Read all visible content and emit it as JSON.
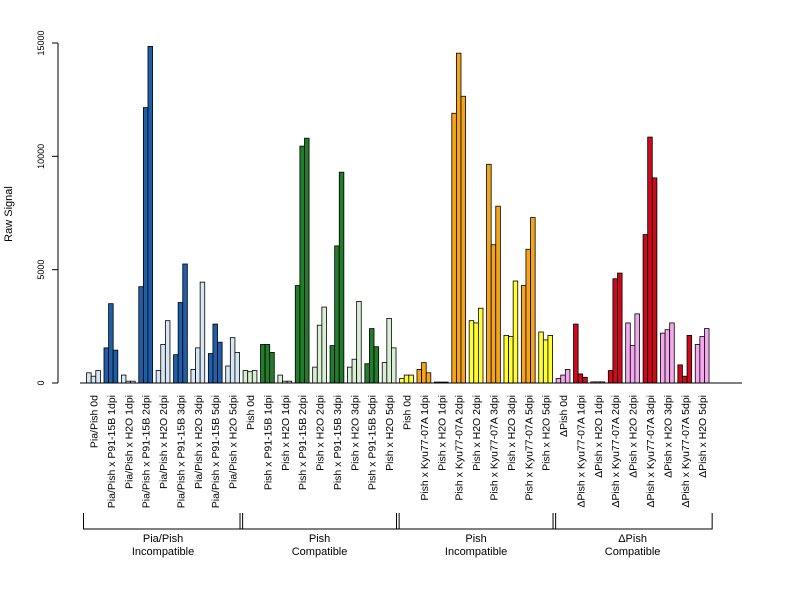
{
  "chart_data": {
    "type": "bar",
    "title": "",
    "xlabel": "",
    "ylabel": "Raw Signal",
    "ylim": [
      0,
      15000
    ],
    "yticks": [
      0,
      5000,
      10000,
      15000
    ],
    "grid": false,
    "replicates": 3,
    "categories": [
      "Pia/Pish 0d",
      "Pia/Pish x P91-15B 1dpi",
      "Pia/Pish x H2O 1dpi",
      "Pia/Pish x P91-15B 2dpi",
      "Pia/Pish x H2O 2dpi",
      "Pia/Pish x P91-15B 3dpi",
      "Pia/Pish x H2O 3dpi",
      "Pia/Pish x P91-15B 5dpi",
      "Pia/Pish x H2O 5dpi",
      "Pish 0d",
      "Pish x P91-15B 1dpi",
      "Pish x H2O 1dpi",
      "Pish x P91-15B 2dpi",
      "Pish x H2O 2dpi",
      "Pish x P91-15B 3dpi",
      "Pish x H2O 3dpi",
      "Pish x P91-15B 5dpi",
      "Pish x H2O 5dpi",
      "Pish 0d",
      "Pish x Kyu77-07A 1dpi",
      "Pish x H2O 1dpi",
      "Pish x Kyu77-07A 2dpi",
      "Pish x H2O 2dpi",
      "Pish x Kyu77-07A 3dpi",
      "Pish x H2O 3dpi",
      "Pish x Kyu77-07A 5dpi",
      "Pish x H2O 5dpi",
      "ΔPish 0d",
      "ΔPish x Kyu77-07A 1dpi",
      "ΔPish x H2O 1dpi",
      "ΔPish x Kyu77-07A 2dpi",
      "ΔPish x H2O 2dpi",
      "ΔPish x Kyu77-07A 3dpi",
      "ΔPish x H2O 3dpi",
      "ΔPish x Kyu77-07A 5dpi",
      "ΔPish x H2O 5dpi"
    ],
    "values": [
      [
        450,
        300,
        550
      ],
      [
        1550,
        3500,
        1450
      ],
      [
        350,
        80,
        80
      ],
      [
        4250,
        12150,
        14850
      ],
      [
        550,
        1700,
        2750
      ],
      [
        1250,
        3550,
        5250
      ],
      [
        600,
        1550,
        4450
      ],
      [
        1300,
        2600,
        1800
      ],
      [
        750,
        2000,
        1350
      ],
      [
        550,
        500,
        550
      ],
      [
        1700,
        1700,
        1350
      ],
      [
        350,
        80,
        80
      ],
      [
        4300,
        10450,
        10800
      ],
      [
        700,
        2550,
        3350
      ],
      [
        1650,
        6050,
        9300
      ],
      [
        700,
        1050,
        3600
      ],
      [
        850,
        2400,
        1600
      ],
      [
        900,
        2850,
        1550
      ],
      [
        200,
        350,
        350
      ],
      [
        600,
        900,
        450
      ],
      [
        40,
        40,
        40
      ],
      [
        11900,
        14550,
        12650
      ],
      [
        2750,
        2650,
        3300
      ],
      [
        9650,
        6100,
        7800
      ],
      [
        2100,
        2050,
        4500
      ],
      [
        4300,
        5900,
        7300
      ],
      [
        2250,
        1900,
        2100
      ],
      [
        200,
        350,
        600
      ],
      [
        2600,
        400,
        250
      ],
      [
        50,
        50,
        50
      ],
      [
        550,
        4600,
        4850
      ],
      [
        2650,
        1650,
        3050
      ],
      [
        6550,
        10850,
        9050
      ],
      [
        2200,
        2350,
        2650
      ],
      [
        800,
        300,
        2100
      ],
      [
        1700,
        2050,
        2400
      ]
    ],
    "colors": [
      "#d6e6f4",
      "#1f5ea8",
      "#d6e6f4",
      "#1f5ea8",
      "#d6e6f4",
      "#1f5ea8",
      "#d6e6f4",
      "#1f5ea8",
      "#d6e6f4",
      "#d9efd3",
      "#217c2b",
      "#d9efd3",
      "#217c2b",
      "#d9efd3",
      "#217c2b",
      "#d9efd3",
      "#217c2b",
      "#d9efd3",
      "#ffff33",
      "#f5a51c",
      "#ffff33",
      "#f5a51c",
      "#ffff33",
      "#f5a51c",
      "#ffff33",
      "#f5a51c",
      "#ffff33",
      "#f3a8ee",
      "#cc0a1a",
      "#f3a8ee",
      "#cc0a1a",
      "#f3a8ee",
      "#cc0a1a",
      "#f3a8ee",
      "#cc0a1a",
      "#f3a8ee"
    ],
    "groups": [
      {
        "line1": "Pia/Pish",
        "line2": "Incompatible",
        "first": 0,
        "last": 8
      },
      {
        "line1": "Pish",
        "line2": "Compatible",
        "first": 9,
        "last": 17
      },
      {
        "line1": "Pish",
        "line2": "Incompatible",
        "first": 18,
        "last": 26
      },
      {
        "line1": "ΔPish",
        "line2": "Compatible",
        "first": 27,
        "last": 35
      }
    ]
  }
}
